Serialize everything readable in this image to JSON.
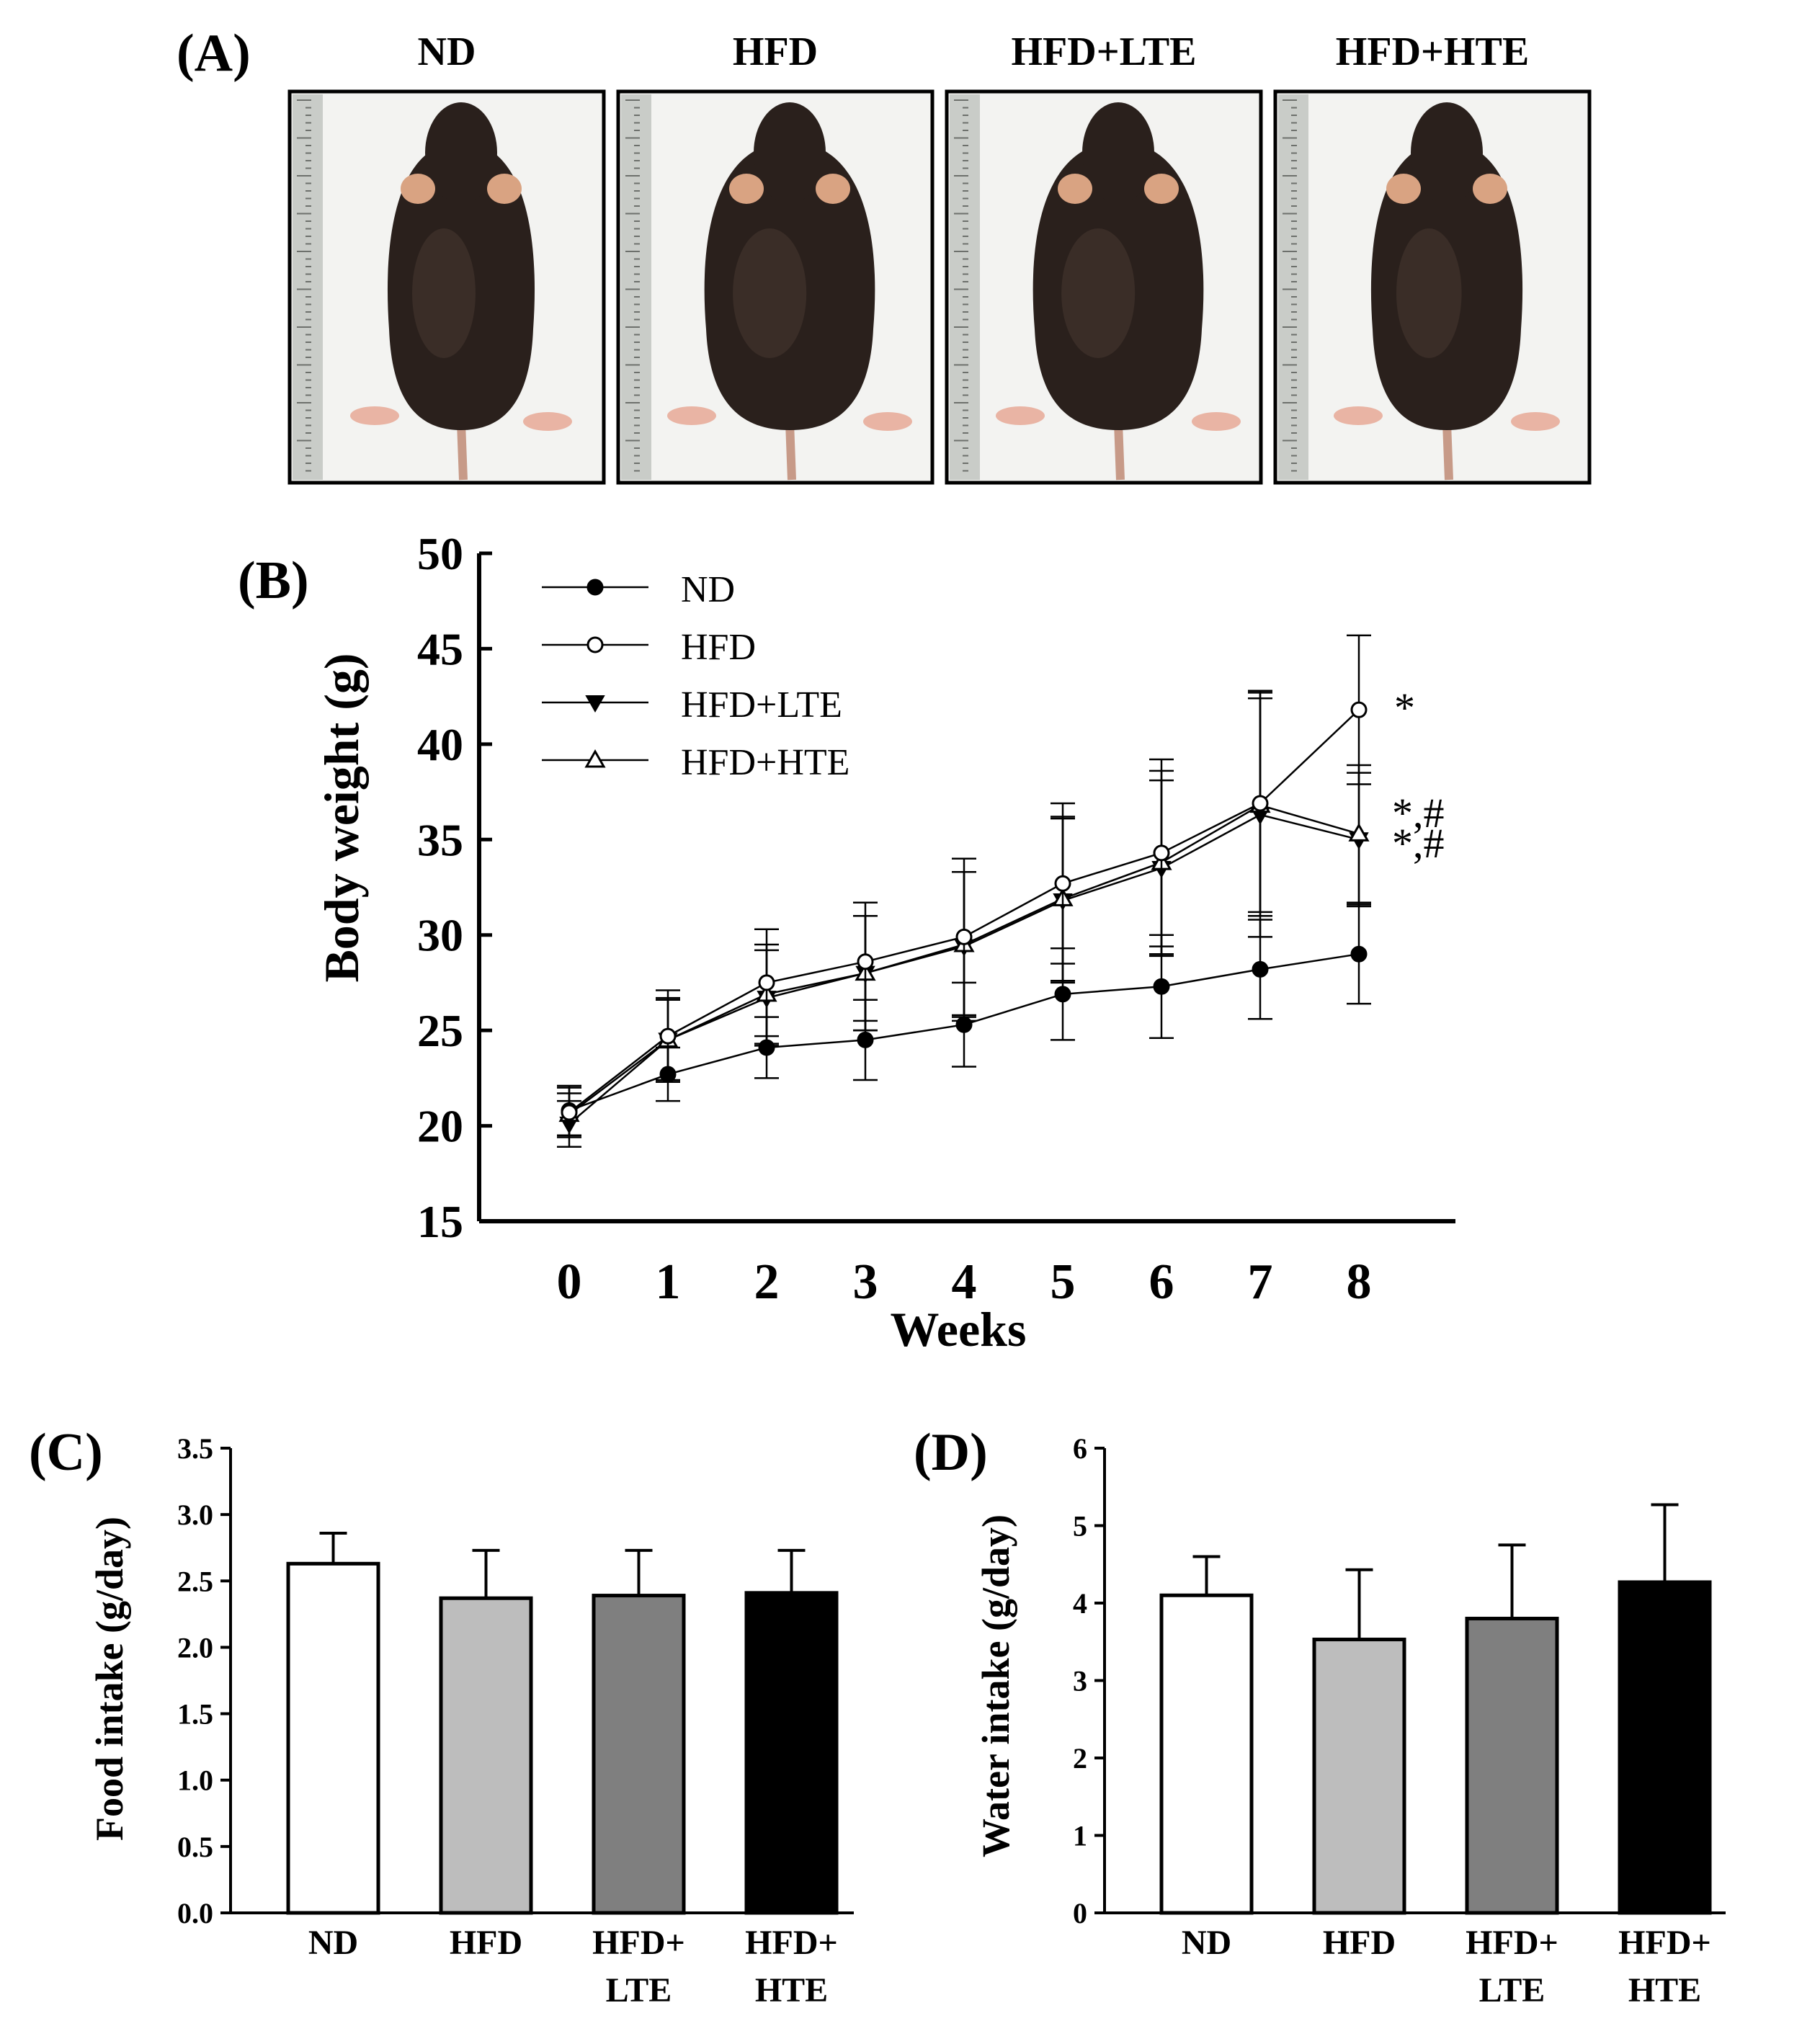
{
  "panel_a": {
    "label": "(A)",
    "photos": [
      {
        "label": "ND"
      },
      {
        "label": "HFD"
      },
      {
        "label": "HFD+LTE"
      },
      {
        "label": "HFD+HTE"
      }
    ],
    "colors": {
      "fur": "#2a201c",
      "fur_light": "#4a3a32",
      "ear": "#d9a382",
      "paw": "#e9b4a4",
      "background": "#f3f3f1",
      "ruler": "#c9ccc8"
    }
  },
  "chart_data": [
    {
      "id": "B",
      "panel_label": "(B)",
      "type": "line",
      "title": "",
      "xlabel": "Weeks",
      "ylabel": "Body weight (g)",
      "x": [
        0,
        1,
        2,
        3,
        4,
        5,
        6,
        7,
        8
      ],
      "xticks": [
        "0",
        "1",
        "2",
        "3",
        "4",
        "5",
        "6",
        "7",
        "8"
      ],
      "ylim": [
        15,
        50
      ],
      "yticks": [
        "15",
        "20",
        "25",
        "30",
        "35",
        "40",
        "45",
        "50"
      ],
      "grid": false,
      "legend_position": "top-left",
      "series": [
        {
          "name": "ND",
          "marker": "filled-circle",
          "values": [
            20.8,
            22.7,
            24.1,
            24.5,
            25.3,
            26.9,
            27.3,
            28.2,
            29.0
          ],
          "errors": [
            1.3,
            1.4,
            1.6,
            2.1,
            2.2,
            2.4,
            2.7,
            2.6,
            2.6
          ]
        },
        {
          "name": "HFD",
          "marker": "open-circle",
          "values": [
            20.7,
            24.7,
            27.5,
            28.6,
            29.9,
            32.7,
            34.3,
            36.9,
            41.8
          ],
          "errors": [
            1.3,
            2.4,
            2.8,
            3.1,
            4.1,
            4.2,
            4.9,
            5.9,
            3.9
          ]
        },
        {
          "name": "HFD+LTE",
          "marker": "filled-triangle-down",
          "values": [
            20.1,
            24.5,
            26.7,
            28.0,
            29.4,
            31.8,
            33.5,
            36.3,
            35.0
          ],
          "errors": [
            1.2,
            2.1,
            2.5,
            3.0,
            3.9,
            4.3,
            4.6,
            6.4,
            3.5
          ]
        },
        {
          "name": "HFD+HTE",
          "marker": "open-triangle-up",
          "values": [
            20.6,
            24.5,
            26.9,
            28.0,
            29.5,
            31.9,
            33.8,
            36.8,
            35.3
          ],
          "errors": [
            1.1,
            2.2,
            2.6,
            3.0,
            3.8,
            4.3,
            4.8,
            5.6,
            3.6
          ]
        }
      ],
      "annotations": [
        {
          "series": "HFD",
          "x": 8,
          "text": "*"
        },
        {
          "series": "HFD+HTE",
          "x": 8,
          "text": "*,#"
        },
        {
          "series": "HFD+LTE",
          "x": 8,
          "text": "*,#"
        }
      ]
    },
    {
      "id": "C",
      "panel_label": "(C)",
      "type": "bar",
      "title": "",
      "xlabel": "",
      "ylabel": "Food intake (g/day)",
      "categories": [
        [
          "ND"
        ],
        [
          "HFD"
        ],
        [
          "HFD+",
          "LTE"
        ],
        [
          "HFD+",
          "HTE"
        ]
      ],
      "values": [
        2.63,
        2.37,
        2.39,
        2.41
      ],
      "errors": [
        0.23,
        0.36,
        0.34,
        0.32
      ],
      "ylim": [
        0,
        3.5
      ],
      "yticks": [
        "0.0",
        "0.5",
        "1.0",
        "1.5",
        "2.0",
        "2.5",
        "3.0",
        "3.5"
      ],
      "grid": false,
      "bar_colors": [
        "#ffffff",
        "#bdbdbd",
        "#7f7f7f",
        "#000000"
      ]
    },
    {
      "id": "D",
      "panel_label": "(D)",
      "type": "bar",
      "title": "",
      "xlabel": "",
      "ylabel": "Water intake (g/day)",
      "categories": [
        [
          "ND"
        ],
        [
          "HFD"
        ],
        [
          "HFD+",
          "LTE"
        ],
        [
          "HFD+",
          "HTE"
        ]
      ],
      "values": [
        4.1,
        3.53,
        3.8,
        4.27
      ],
      "errors": [
        0.5,
        0.9,
        0.95,
        1.0
      ],
      "ylim": [
        0,
        6
      ],
      "yticks": [
        "0",
        "1",
        "2",
        "3",
        "4",
        "5",
        "6"
      ],
      "grid": false,
      "bar_colors": [
        "#ffffff",
        "#bdbdbd",
        "#7f7f7f",
        "#000000"
      ]
    }
  ]
}
